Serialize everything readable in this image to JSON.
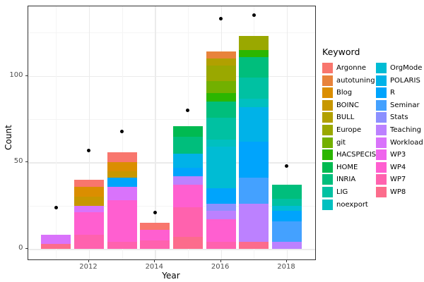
{
  "figure": {
    "y_axis_title": "Count",
    "x_axis_title": "Year",
    "legend_title": "Keyword"
  },
  "chart_data": {
    "type": "bar",
    "stacked": true,
    "title": "",
    "xlabel": "Year",
    "ylabel": "Count",
    "legend_title": "Keyword",
    "legend_position": "right",
    "grid": true,
    "categories": [
      2011,
      2012,
      2013,
      2014,
      2015,
      2016,
      2017,
      2018
    ],
    "x_major_ticks": [
      2012,
      2014,
      2016,
      2018
    ],
    "y_ticks": [
      0,
      50,
      100
    ],
    "y_minor_gridlines": [
      25,
      75,
      125
    ],
    "ylim": [
      -7,
      140
    ],
    "keywords": [
      "Argonne",
      "autotuning",
      "Blog",
      "BOINC",
      "BULL",
      "Europe",
      "git",
      "HACSPECIS",
      "HOME",
      "INRIA",
      "LIG",
      "noexport",
      "OrgMode",
      "POLARIS",
      "R",
      "Seminar",
      "Stats",
      "Teaching",
      "Workload",
      "WP3",
      "WP4",
      "WP7",
      "WP8"
    ],
    "colors": {
      "Argonne": "#F8766D",
      "autotuning": "#E8833B",
      "Blog": "#DB8E00",
      "BOINC": "#C79700",
      "BULL": "#B1A000",
      "Europe": "#9AA800",
      "git": "#72B000",
      "HACSPECIS": "#2BB600",
      "HOME": "#00BA51",
      "INRIA": "#00BE7C",
      "LIG": "#00C1A2",
      "noexport": "#00C0C0",
      "OrgMode": "#00BCD4",
      "POLARIS": "#00B2E8",
      "R": "#00A4FC",
      "Seminar": "#44A1FF",
      "Stats": "#8C90FF",
      "Teaching": "#BC81FF",
      "Workload": "#D973FB",
      "WP3": "#EF65EC",
      "WP4": "#FF5FD0",
      "WP7": "#FF62AE",
      "WP8": "#FC6C8C"
    },
    "bars": [
      {
        "year": 2011,
        "total": 8,
        "segments": [
          {
            "k": "WP8",
            "v": 3
          },
          {
            "k": "Workload",
            "v": 5
          }
        ]
      },
      {
        "year": 2012,
        "total": 40,
        "segments": [
          {
            "k": "WP7",
            "v": 8
          },
          {
            "k": "WP4",
            "v": 13
          },
          {
            "k": "Workload",
            "v": 4
          },
          {
            "k": "BOINC",
            "v": 5
          },
          {
            "k": "Blog",
            "v": 6
          },
          {
            "k": "Argonne",
            "v": 4
          }
        ]
      },
      {
        "year": 2013,
        "total": 56,
        "segments": [
          {
            "k": "WP7",
            "v": 4
          },
          {
            "k": "WP4",
            "v": 24
          },
          {
            "k": "Workload",
            "v": 8
          },
          {
            "k": "R",
            "v": 5
          },
          {
            "k": "BOINC",
            "v": 4
          },
          {
            "k": "Blog",
            "v": 5
          },
          {
            "k": "Argonne",
            "v": 6
          }
        ]
      },
      {
        "year": 2014,
        "total": 15,
        "segments": [
          {
            "k": "WP7",
            "v": 5
          },
          {
            "k": "WP4",
            "v": 6
          },
          {
            "k": "Argonne",
            "v": 4
          }
        ]
      },
      {
        "year": 2015,
        "total": 71,
        "segments": [
          {
            "k": "WP8",
            "v": 7
          },
          {
            "k": "WP7",
            "v": 17
          },
          {
            "k": "WP4",
            "v": 13
          },
          {
            "k": "Teaching",
            "v": 5
          },
          {
            "k": "R",
            "v": 5
          },
          {
            "k": "POLARIS",
            "v": 8
          },
          {
            "k": "INRIA",
            "v": 10
          },
          {
            "k": "HOME",
            "v": 6
          }
        ]
      },
      {
        "year": 2016,
        "total": 114,
        "segments": [
          {
            "k": "WP7",
            "v": 4
          },
          {
            "k": "WP4",
            "v": 13
          },
          {
            "k": "Teaching",
            "v": 5
          },
          {
            "k": "Stats",
            "v": 4
          },
          {
            "k": "R",
            "v": 9
          },
          {
            "k": "OrgMode",
            "v": 24
          },
          {
            "k": "noexport",
            "v": 4
          },
          {
            "k": "LIG",
            "v": 13
          },
          {
            "k": "INRIA",
            "v": 9
          },
          {
            "k": "HACSPECIS",
            "v": 5
          },
          {
            "k": "git",
            "v": 7
          },
          {
            "k": "Europe",
            "v": 9
          },
          {
            "k": "BULL",
            "v": 4
          },
          {
            "k": "autotuning",
            "v": 4
          }
        ]
      },
      {
        "year": 2017,
        "total": 123,
        "segments": [
          {
            "k": "WP8",
            "v": 4
          },
          {
            "k": "Teaching",
            "v": 22
          },
          {
            "k": "Seminar",
            "v": 15
          },
          {
            "k": "R",
            "v": 21
          },
          {
            "k": "POLARIS",
            "v": 20
          },
          {
            "k": "noexport",
            "v": 5
          },
          {
            "k": "LIG",
            "v": 12
          },
          {
            "k": "INRIA",
            "v": 12
          },
          {
            "k": "HACSPECIS",
            "v": 4
          },
          {
            "k": "Europe",
            "v": 8
          }
        ]
      },
      {
        "year": 2018,
        "total": 37,
        "segments": [
          {
            "k": "Teaching",
            "v": 4
          },
          {
            "k": "Seminar",
            "v": 12
          },
          {
            "k": "R",
            "v": 6
          },
          {
            "k": "OrgMode",
            "v": 3
          },
          {
            "k": "LIG",
            "v": 4
          },
          {
            "k": "INRIA",
            "v": 8
          }
        ]
      }
    ],
    "points": [
      {
        "year": 2011,
        "value": 24
      },
      {
        "year": 2012,
        "value": 57
      },
      {
        "year": 2013,
        "value": 68
      },
      {
        "year": 2014,
        "value": 21
      },
      {
        "year": 2015,
        "value": 80
      },
      {
        "year": 2016,
        "value": 133
      },
      {
        "year": 2017,
        "value": 135
      },
      {
        "year": 2018,
        "value": 48
      }
    ]
  }
}
